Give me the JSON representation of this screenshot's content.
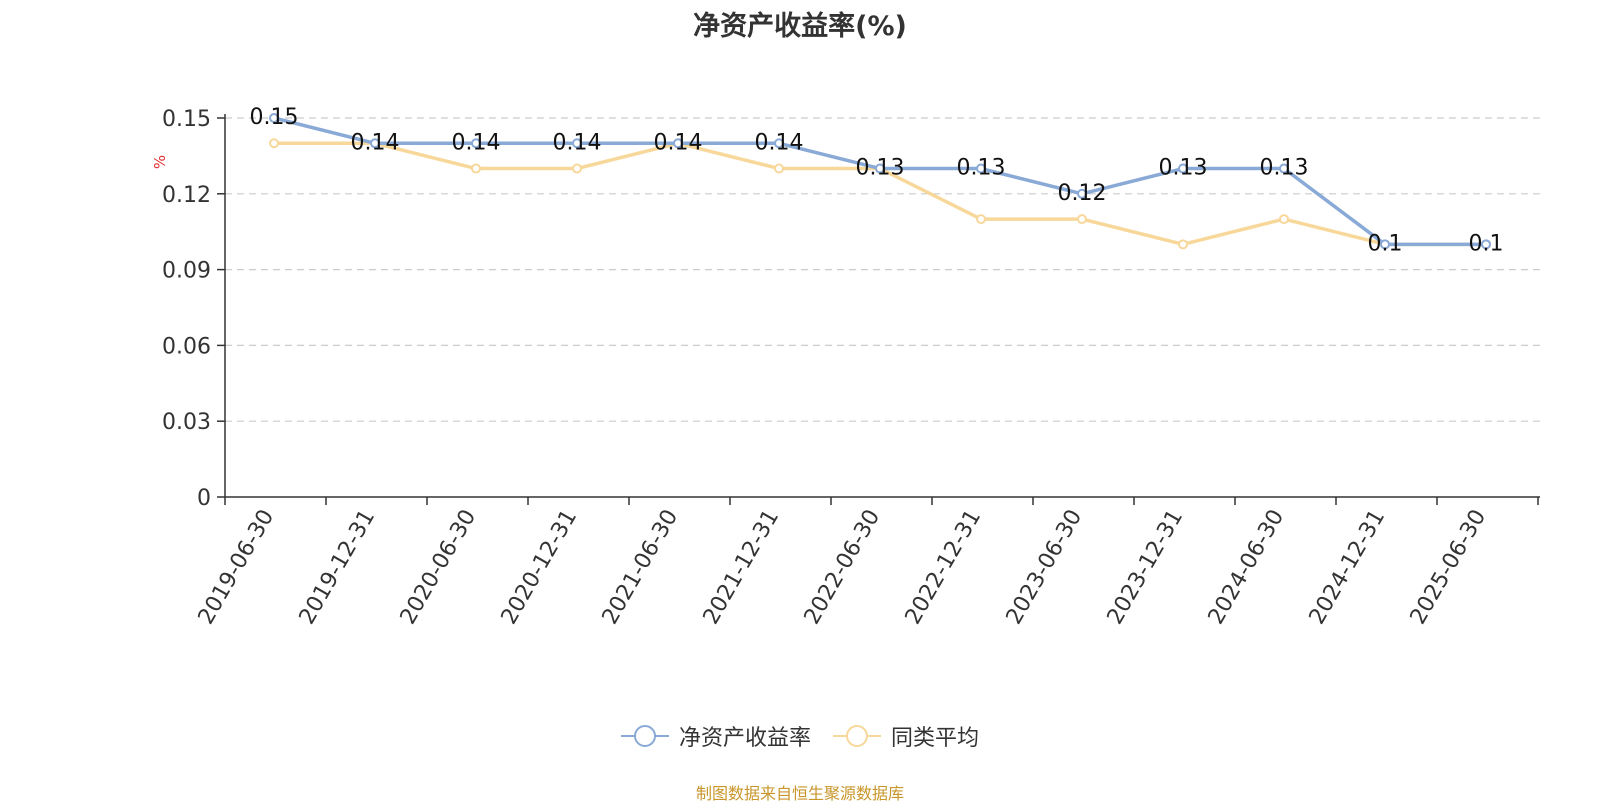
{
  "title": "净资产收益率(%)",
  "footer": "制图数据来自恒生聚源数据库",
  "colors": {
    "series_1": "#89a9d6",
    "series_2": "#f8d89a",
    "grid": "#cccccc",
    "axis": "#333333",
    "footer": "#c8962a",
    "y_unit": "#e03030"
  },
  "chart_data": {
    "type": "line",
    "title": "净资产收益率(%)",
    "ylabel": "%",
    "ylim": [
      0,
      0.15
    ],
    "yticks": [
      "0",
      "0.03",
      "0.06",
      "0.09",
      "0.12",
      "0.15"
    ],
    "grid": true,
    "legend_position": "bottom",
    "categories": [
      "2019-06-30",
      "2019-12-31",
      "2020-06-30",
      "2020-12-31",
      "2021-06-30",
      "2021-12-31",
      "2022-06-30",
      "2022-12-31",
      "2023-06-30",
      "2023-12-31",
      "2024-06-30",
      "2024-12-31",
      "2025-06-30"
    ],
    "series": [
      {
        "name": "净资产收益率",
        "values": [
          0.15,
          0.14,
          0.14,
          0.14,
          0.14,
          0.14,
          0.13,
          0.13,
          0.12,
          0.13,
          0.13,
          0.1,
          0.1
        ],
        "labels": [
          "0.15",
          "0.14",
          "0.14",
          "0.14",
          "0.14",
          "0.14",
          "0.13",
          "0.13",
          "0.12",
          "0.13",
          "0.13",
          "0.1",
          "0.1"
        ]
      },
      {
        "name": "同类平均",
        "values": [
          0.14,
          0.14,
          0.13,
          0.13,
          0.14,
          0.13,
          0.13,
          0.11,
          0.11,
          0.1,
          0.11,
          0.1,
          0.1
        ]
      }
    ]
  }
}
